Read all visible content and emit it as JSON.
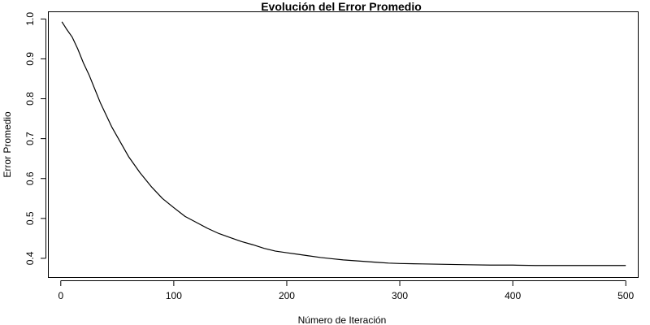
{
  "chart_data": {
    "type": "line",
    "title": "Evolución del Error Promedio",
    "xlabel": "Número de Iteración",
    "ylabel": "Error Promedio",
    "xlim": [
      -11,
      511
    ],
    "ylim": [
      0.352,
      1.018
    ],
    "x_ticks": [
      0,
      100,
      200,
      300,
      400,
      500
    ],
    "x_tick_labels": [
      "0",
      "100",
      "200",
      "300",
      "400",
      "500"
    ],
    "y_ticks": [
      0.4,
      0.5,
      0.6,
      0.7,
      0.8,
      0.9,
      1.0
    ],
    "y_tick_labels": [
      "0.4",
      "0.5",
      "0.6",
      "0.7",
      "0.8",
      "0.9",
      "1.0"
    ],
    "grid": false,
    "legend": "none",
    "line_color": "#000000",
    "series": [
      {
        "x": [
          1,
          5,
          10,
          15,
          20,
          25,
          30,
          35,
          40,
          45,
          50,
          60,
          70,
          80,
          90,
          100,
          110,
          120,
          130,
          140,
          150,
          160,
          170,
          180,
          190,
          200,
          210,
          220,
          230,
          240,
          250,
          260,
          270,
          280,
          290,
          300,
          320,
          340,
          360,
          380,
          400,
          420,
          440,
          460,
          480,
          500
        ],
        "y": [
          0.993,
          0.975,
          0.955,
          0.925,
          0.89,
          0.86,
          0.825,
          0.79,
          0.76,
          0.73,
          0.705,
          0.655,
          0.615,
          0.58,
          0.55,
          0.527,
          0.505,
          0.49,
          0.475,
          0.462,
          0.452,
          0.442,
          0.434,
          0.425,
          0.418,
          0.414,
          0.41,
          0.406,
          0.402,
          0.399,
          0.396,
          0.394,
          0.392,
          0.39,
          0.388,
          0.387,
          0.386,
          0.385,
          0.384,
          0.383,
          0.383,
          0.382,
          0.382,
          0.382,
          0.382,
          0.382
        ]
      }
    ]
  }
}
